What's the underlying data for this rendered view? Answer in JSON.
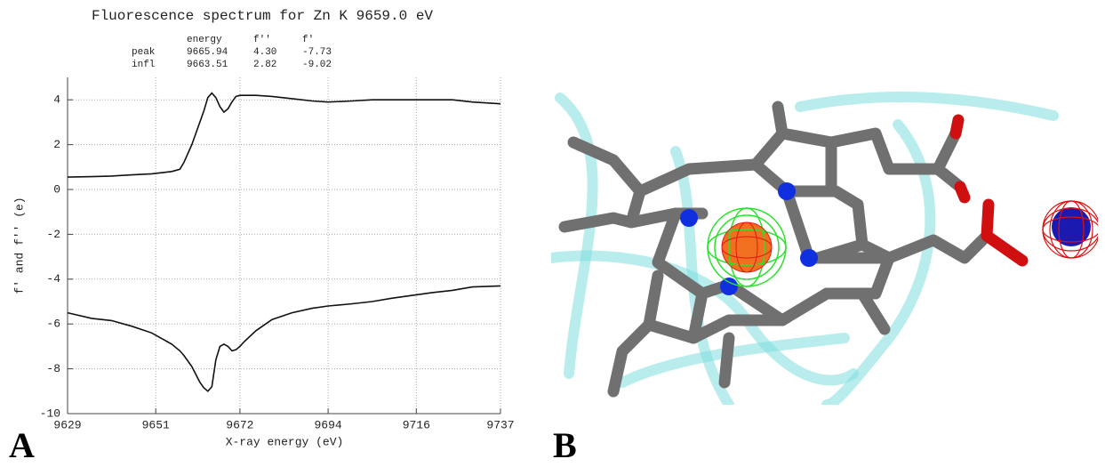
{
  "chart_data": {
    "type": "line",
    "title": "Fluorescence spectrum for Zn K 9659.0 eV",
    "table": {
      "header": [
        "energy",
        "f''",
        "f'"
      ],
      "rows": [
        [
          "peak",
          "9665.94",
          "4.30",
          "-7.73"
        ],
        [
          "infl",
          "9663.51",
          "2.82",
          "-9.02"
        ]
      ]
    },
    "xlabel": "X-ray energy (eV)",
    "ylabel": "f' and f'' (e)",
    "x": [
      9629,
      9635,
      9640,
      9645,
      9650,
      9655,
      9657,
      9658,
      9660,
      9662,
      9663,
      9664,
      9665,
      9666,
      9667,
      9668,
      9669,
      9670,
      9671,
      9672,
      9673,
      9676,
      9680,
      9685,
      9690,
      9694,
      9700,
      9705,
      9710,
      9716,
      9720,
      9725,
      9730,
      9737
    ],
    "series": [
      {
        "color": "#111111",
        "values": [
          0.55,
          0.57,
          0.6,
          0.65,
          0.7,
          0.8,
          0.9,
          1.2,
          2.0,
          3.0,
          3.5,
          4.1,
          4.3,
          4.1,
          3.7,
          3.45,
          3.6,
          3.9,
          4.15,
          4.2,
          4.2,
          4.2,
          4.15,
          4.05,
          3.95,
          3.9,
          3.95,
          4.0,
          4.0,
          4.0,
          4.0,
          4.0,
          3.9,
          3.82
        ]
      },
      {
        "color": "#111111",
        "values": [
          -5.5,
          -5.75,
          -5.85,
          -6.1,
          -6.4,
          -6.9,
          -7.2,
          -7.4,
          -7.9,
          -8.6,
          -8.85,
          -9.0,
          -8.8,
          -7.6,
          -7.0,
          -6.9,
          -7.0,
          -7.2,
          -7.15,
          -7.0,
          -6.8,
          -6.3,
          -5.8,
          -5.5,
          -5.3,
          -5.2,
          -5.1,
          -5.0,
          -4.85,
          -4.7,
          -4.6,
          -4.5,
          -4.35,
          -4.3
        ]
      }
    ],
    "xlim": [
      9629,
      9737
    ],
    "xticks": [
      9629,
      9651,
      9672,
      9694,
      9716,
      9737
    ],
    "ylim": [
      -10,
      5
    ],
    "yticks": [
      4,
      2,
      0,
      -2,
      -4,
      -6,
      -8,
      -10
    ],
    "grid": true
  },
  "labels": [
    "A",
    "B"
  ]
}
